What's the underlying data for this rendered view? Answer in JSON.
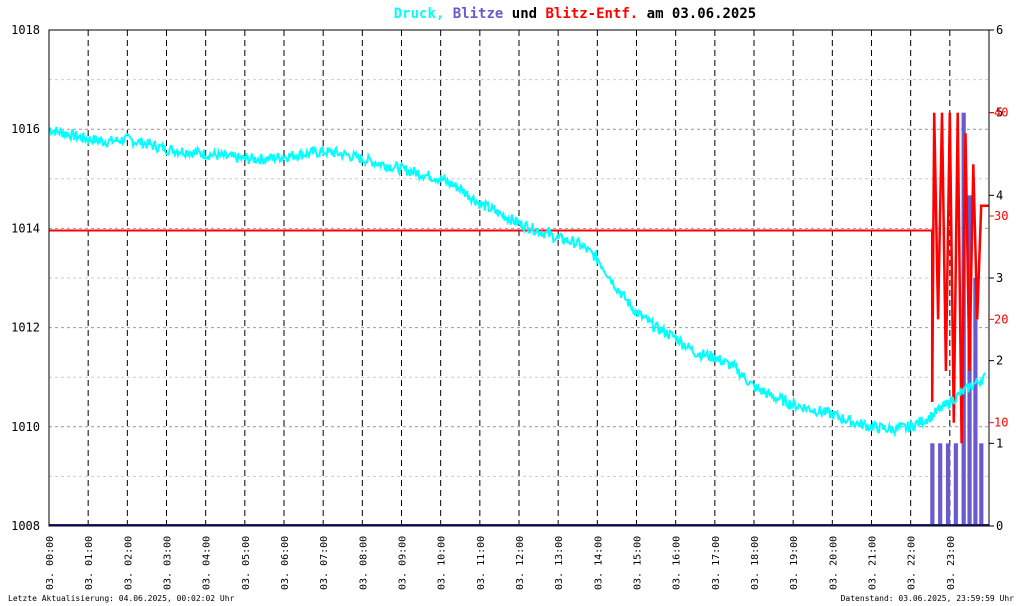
{
  "chart_data": {
    "type": "line",
    "title_parts": [
      {
        "text": "Druck",
        "color": "#00ffff"
      },
      {
        "text": ", ",
        "color": "#00ffff"
      },
      {
        "text": "Blitze",
        "color": "#6a5acd"
      },
      {
        "text": " und ",
        "color": "#000000"
      },
      {
        "text": "Blitz-Entf.",
        "color": "#ff0000"
      },
      {
        "text": " am 03.06.2025",
        "color": "#000000"
      }
    ],
    "x_ticks": [
      "03. 00:00",
      "03. 01:00",
      "03. 02:00",
      "03. 03:00",
      "03. 04:00",
      "03. 05:00",
      "03. 06:00",
      "03. 07:00",
      "03. 08:00",
      "03. 09:00",
      "03. 10:00",
      "03. 11:00",
      "03. 12:00",
      "03. 13:00",
      "03. 14:00",
      "03. 15:00",
      "03. 16:00",
      "03. 17:00",
      "03. 18:00",
      "03. 19:00",
      "03. 20:00",
      "03. 21:00",
      "03. 22:00",
      "03. 23:00"
    ],
    "x_range_hours": [
      0,
      24
    ],
    "y_left": {
      "ticks": [
        "1008",
        "1010",
        "1012",
        "1014",
        "1016",
        "1018"
      ],
      "range": [
        1008,
        1018
      ]
    },
    "y_right_strikes": {
      "ticks": [
        "0",
        "1",
        "2",
        "3",
        "4",
        "5",
        "6"
      ],
      "range": [
        0,
        6
      ]
    },
    "y_right_distance": {
      "ticks": [
        "10",
        "20",
        "30",
        "40"
      ],
      "range": [
        0,
        48
      ]
    },
    "grid": true,
    "series": [
      {
        "name": "Druck",
        "color": "#00ffff",
        "points": [
          [
            0,
            1016.0
          ],
          [
            0.5,
            1015.9
          ],
          [
            1,
            1015.8
          ],
          [
            1.5,
            1015.75
          ],
          [
            2,
            1015.8
          ],
          [
            2.5,
            1015.7
          ],
          [
            3,
            1015.6
          ],
          [
            3.5,
            1015.55
          ],
          [
            4,
            1015.5
          ],
          [
            4.5,
            1015.45
          ],
          [
            5,
            1015.4
          ],
          [
            5.5,
            1015.4
          ],
          [
            6,
            1015.45
          ],
          [
            6.5,
            1015.5
          ],
          [
            7,
            1015.55
          ],
          [
            7.5,
            1015.5
          ],
          [
            8,
            1015.4
          ],
          [
            8.5,
            1015.3
          ],
          [
            9,
            1015.2
          ],
          [
            9.5,
            1015.1
          ],
          [
            10,
            1015.0
          ],
          [
            10.5,
            1014.8
          ],
          [
            11,
            1014.5
          ],
          [
            11.5,
            1014.3
          ],
          [
            12,
            1014.1
          ],
          [
            12.5,
            1013.95
          ],
          [
            13,
            1013.8
          ],
          [
            13.5,
            1013.7
          ],
          [
            14,
            1013.4
          ],
          [
            14.5,
            1012.8
          ],
          [
            15,
            1012.3
          ],
          [
            15.5,
            1012.0
          ],
          [
            16,
            1011.8
          ],
          [
            16.5,
            1011.5
          ],
          [
            17,
            1011.4
          ],
          [
            17.5,
            1011.2
          ],
          [
            18,
            1010.8
          ],
          [
            18.5,
            1010.6
          ],
          [
            19,
            1010.45
          ],
          [
            19.5,
            1010.35
          ],
          [
            20,
            1010.25
          ],
          [
            20.5,
            1010.1
          ],
          [
            21,
            1010.0
          ],
          [
            21.5,
            1009.95
          ],
          [
            22,
            1010.0
          ],
          [
            22.5,
            1010.2
          ],
          [
            23,
            1010.5
          ],
          [
            23.5,
            1010.8
          ],
          [
            23.9,
            1011.0
          ]
        ]
      },
      {
        "name": "Blitze",
        "color": "#6a5acd",
        "bars": [
          [
            22.5,
            1
          ],
          [
            22.7,
            1
          ],
          [
            22.9,
            1
          ],
          [
            23.1,
            1
          ],
          [
            23.3,
            5
          ],
          [
            23.45,
            4
          ],
          [
            23.6,
            3
          ],
          [
            23.75,
            1
          ]
        ]
      },
      {
        "name": "Blitz-Entf.",
        "color": "#ff0000",
        "baseline_value": 28.6,
        "spikes": [
          [
            22.55,
            12
          ],
          [
            22.6,
            40
          ],
          [
            22.7,
            20
          ],
          [
            22.8,
            40
          ],
          [
            22.9,
            15
          ],
          [
            23.0,
            40
          ],
          [
            23.1,
            10
          ],
          [
            23.2,
            40
          ],
          [
            23.3,
            8
          ],
          [
            23.4,
            38
          ],
          [
            23.5,
            15
          ],
          [
            23.6,
            35
          ],
          [
            23.7,
            20
          ],
          [
            23.8,
            31
          ],
          [
            23.9,
            31
          ],
          [
            24.0,
            31
          ]
        ]
      }
    ]
  },
  "footer": {
    "left": "Letzte Aktualisierung: 04.06.2025, 00:02:02 Uhr",
    "right": "Datenstand: 03.06.2025, 23:59:59 Uhr"
  }
}
